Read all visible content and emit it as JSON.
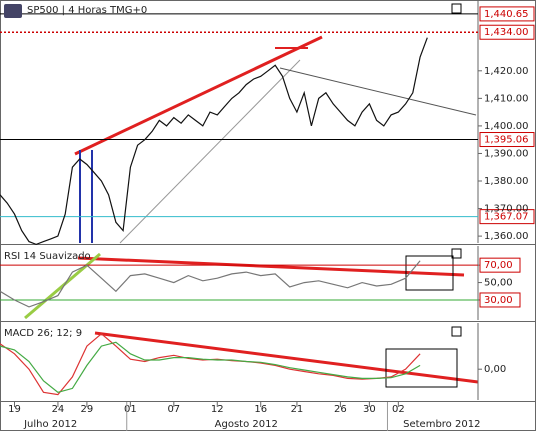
{
  "chart_data": [
    {
      "type": "line",
      "title": "SP500 | 4 Horas TMG+0",
      "x": [
        0,
        1,
        2,
        3,
        4,
        5,
        6,
        7,
        8,
        9,
        10,
        11,
        12,
        13,
        14,
        15,
        16,
        17,
        18,
        19,
        20,
        21,
        22,
        23,
        24,
        25,
        26,
        27,
        28,
        29,
        30,
        31,
        32,
        33,
        34,
        35,
        36,
        37,
        38,
        39,
        40,
        41,
        42,
        43,
        44,
        45,
        46,
        47,
        48,
        49,
        50,
        51,
        52,
        53,
        54,
        55,
        56,
        57,
        58,
        59
      ],
      "xlim": [
        0,
        66
      ],
      "xticks": [
        {
          "value": 2,
          "label": "19"
        },
        {
          "value": 8,
          "label": "24"
        },
        {
          "value": 12,
          "label": "29"
        },
        {
          "value": 18,
          "label": "01"
        },
        {
          "value": 24,
          "label": "07"
        },
        {
          "value": 30,
          "label": "12"
        },
        {
          "value": 36,
          "label": "16"
        },
        {
          "value": 41,
          "label": "21"
        },
        {
          "value": 47,
          "label": "26"
        },
        {
          "value": 51,
          "label": "30"
        },
        {
          "value": 55,
          "label": "02"
        }
      ],
      "months": [
        {
          "value": 7,
          "label": "Julho 2012"
        },
        {
          "value": 34,
          "label": "Agosto 2012"
        },
        {
          "value": 61,
          "label": "Setembro 2012"
        }
      ],
      "series": [
        {
          "color": "#111111",
          "values": [
            1375,
            1372,
            1368,
            1362,
            1358,
            1357,
            1358,
            1359,
            1360,
            1368,
            1385,
            1388,
            1386,
            1383,
            1380,
            1375,
            1365,
            1362,
            1385,
            1393,
            1395,
            1398,
            1402,
            1400,
            1403,
            1401,
            1404,
            1402,
            1400,
            1405,
            1404,
            1407,
            1410,
            1412,
            1415,
            1417,
            1418,
            1420,
            1422,
            1418,
            1410,
            1405,
            1412,
            1400,
            1410,
            1412,
            1408,
            1405,
            1402,
            1400,
            1405,
            1408,
            1402,
            1400,
            1404,
            1405,
            1408,
            1412,
            1425,
            1432
          ]
        }
      ],
      "ylim": [
        1357.5,
        1445.7
      ],
      "yticks": [
        {
          "value": 1420,
          "label": "1,420.00"
        },
        {
          "value": 1410,
          "label": "1,410.00"
        },
        {
          "value": 1400,
          "label": "1,400.00"
        },
        {
          "value": 1390,
          "label": "1,390.00"
        },
        {
          "value": 1380,
          "label": "1,380.00"
        },
        {
          "value": 1370,
          "label": "1,370.00"
        },
        {
          "value": 1360,
          "label": "1,360.00"
        }
      ],
      "levels": [
        {
          "value": 1440.65,
          "label": "1,440.65",
          "color": "#000000"
        },
        {
          "value": 1434,
          "label": "1,434.00",
          "color": "#cc0000"
        },
        {
          "value": 1395.06,
          "label": "1,395.06",
          "color": "#000000"
        },
        {
          "value": 1367.07,
          "label": "1,367.07",
          "color": "#33bbcc"
        }
      ]
    },
    {
      "type": "line",
      "title": "RSI 14 Suavizado",
      "x": [
        0,
        2,
        4,
        6,
        8,
        10,
        12,
        14,
        16,
        18,
        20,
        22,
        24,
        26,
        28,
        30,
        32,
        34,
        36,
        38,
        40,
        42,
        44,
        46,
        48,
        50,
        52,
        54,
        56,
        58
      ],
      "xlim": [
        0,
        66
      ],
      "series": [
        {
          "color": "#777777",
          "values": [
            40,
            30,
            22,
            28,
            35,
            62,
            70,
            55,
            40,
            58,
            60,
            55,
            50,
            58,
            52,
            55,
            60,
            62,
            58,
            60,
            45,
            50,
            52,
            48,
            44,
            50,
            46,
            48,
            55,
            75
          ]
        }
      ],
      "ylim": [
        7,
        92
      ],
      "yticks": [
        {
          "value": 70,
          "label": "70,00"
        },
        {
          "value": 50,
          "label": "50,00"
        },
        {
          "value": 30,
          "label": "30,00"
        }
      ],
      "levels": [
        {
          "value": 70,
          "color": "#cc0000"
        },
        {
          "value": 30,
          "color": "#33aa33"
        }
      ]
    },
    {
      "type": "line",
      "title": "MACD 26; 12; 9",
      "x": [
        0,
        2,
        4,
        6,
        8,
        10,
        12,
        14,
        16,
        18,
        20,
        22,
        24,
        26,
        28,
        30,
        32,
        34,
        36,
        38,
        40,
        42,
        44,
        46,
        48,
        50,
        52,
        54,
        56,
        58
      ],
      "xlim": [
        0,
        66
      ],
      "series": [
        {
          "color": "#dd3333",
          "values": [
            3.3,
            2,
            0,
            -3,
            -3.3,
            -1,
            3,
            4.6,
            3,
            1.3,
            1,
            1.5,
            1.8,
            1.4,
            1.2,
            1.3,
            1.1,
            1,
            0.8,
            0.5,
            0,
            -0.3,
            -0.6,
            -0.8,
            -1.2,
            -1.3,
            -1.2,
            -1,
            0,
            2
          ]
        },
        {
          "color": "#44aa44",
          "values": [
            3,
            2.5,
            1,
            -1.5,
            -3,
            -2.5,
            0.5,
            3,
            3.5,
            2,
            1.2,
            1.2,
            1.5,
            1.5,
            1.3,
            1.2,
            1.2,
            1,
            0.9,
            0.6,
            0.2,
            -0.1,
            -0.4,
            -0.7,
            -1,
            -1.2,
            -1.2,
            -1.1,
            -0.6,
            0.5
          ]
        }
      ],
      "ylim": [
        -4,
        6
      ],
      "yticks": [
        {
          "value": 0,
          "label": "0,00"
        }
      ]
    }
  ]
}
